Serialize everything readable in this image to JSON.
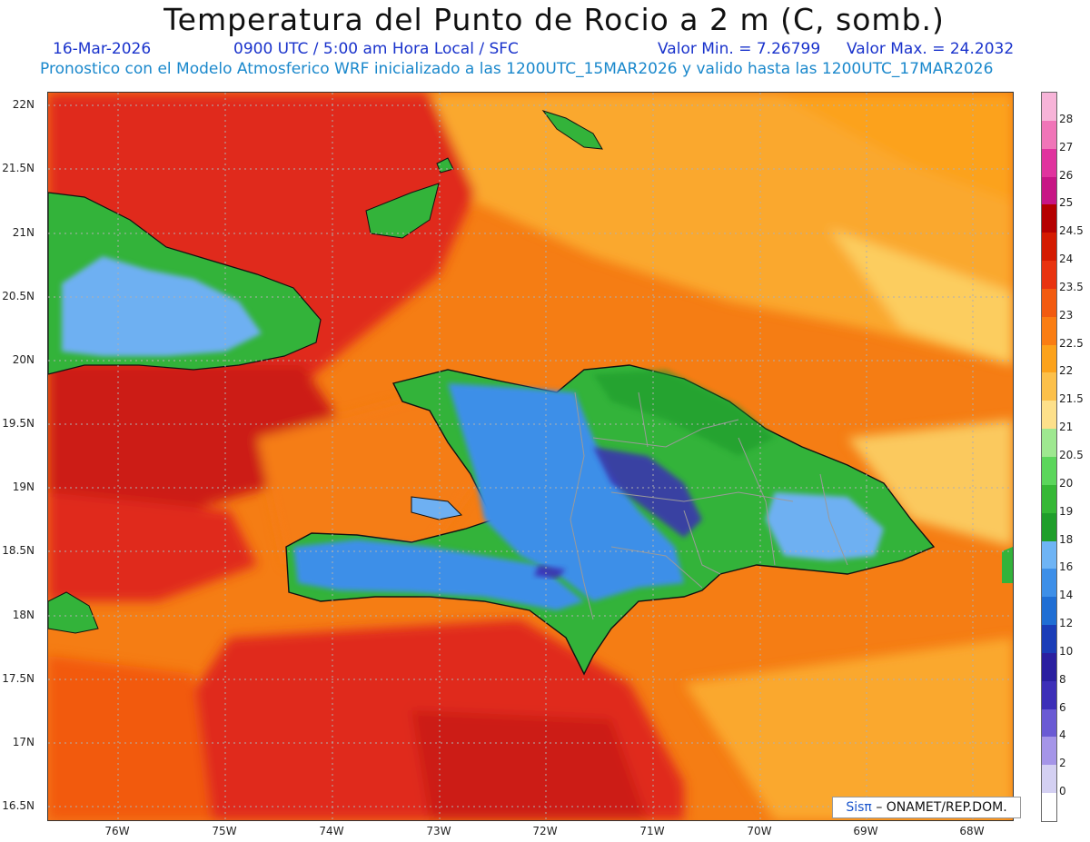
{
  "header": {
    "title": "Temperatura del Punto de Rocio a 2 m (C, somb.)",
    "date": "16-Mar-2026",
    "time": "0900 UTC / 5:00 am Hora Local / SFC",
    "min_label": "Valor Min. = 7.26799",
    "max_label": "Valor Max. = 24.2032",
    "subtitle": "Pronostico con el Modelo Atmosferico WRF inicializado a las 1200UTC_15MAR2026 y valido hasta las  1200UTC_17MAR2026"
  },
  "axes": {
    "y_labels": [
      "22N",
      "21.5N",
      "21N",
      "20.5N",
      "20N",
      "19.5N",
      "19N",
      "18.5N",
      "18N",
      "17.5N",
      "17N",
      "16.5N"
    ],
    "x_labels": [
      "76W",
      "75W",
      "74W",
      "73W",
      "72W",
      "71W",
      "70W",
      "69W",
      "68W"
    ]
  },
  "colorbar": {
    "labels": [
      "28",
      "27",
      "26",
      "25",
      "24.5",
      "24",
      "23.5",
      "23",
      "22.5",
      "22",
      "21.5",
      "21",
      "20.5",
      "20",
      "19",
      "18",
      "16",
      "14",
      "12",
      "10",
      "8",
      "6",
      "4",
      "2",
      "0"
    ],
    "colors": [
      "#f7b4d8",
      "#f075b8",
      "#e0339e",
      "#c71585",
      "#b50000",
      "#d41a00",
      "#e8330f",
      "#f25a0f",
      "#fa7d12",
      "#fca21a",
      "#fcc04a",
      "#fde08a",
      "#9ee890",
      "#5bd65b",
      "#35b835",
      "#1f9e2a",
      "#6eb4f5",
      "#3d8fe8",
      "#1f6ed4",
      "#1a3db8",
      "#2a1fa0",
      "#3d2fb8",
      "#6a5ad4",
      "#a595e8",
      "#d4d0f2",
      "#ffffff"
    ]
  },
  "map": {
    "palette": {
      "red": "#e0291a",
      "deep_red": "#cc1a12",
      "orange": "#f57d14",
      "light_orange": "#faa82e",
      "yellow": "#fcd66b",
      "green": "#33b33a",
      "dark_green": "#1a9a2a",
      "light_green": "#66d466",
      "blue": "#3d8fe8",
      "light_blue": "#6eb0f2",
      "dark_blue": "#3a2fb5",
      "border": "#111111",
      "province": "#9a9a9a",
      "grid": "#b0b0b0"
    }
  },
  "credit": {
    "brand": "Sis",
    "pi": "π",
    "text": "– ONAMET/REP.DOM."
  }
}
